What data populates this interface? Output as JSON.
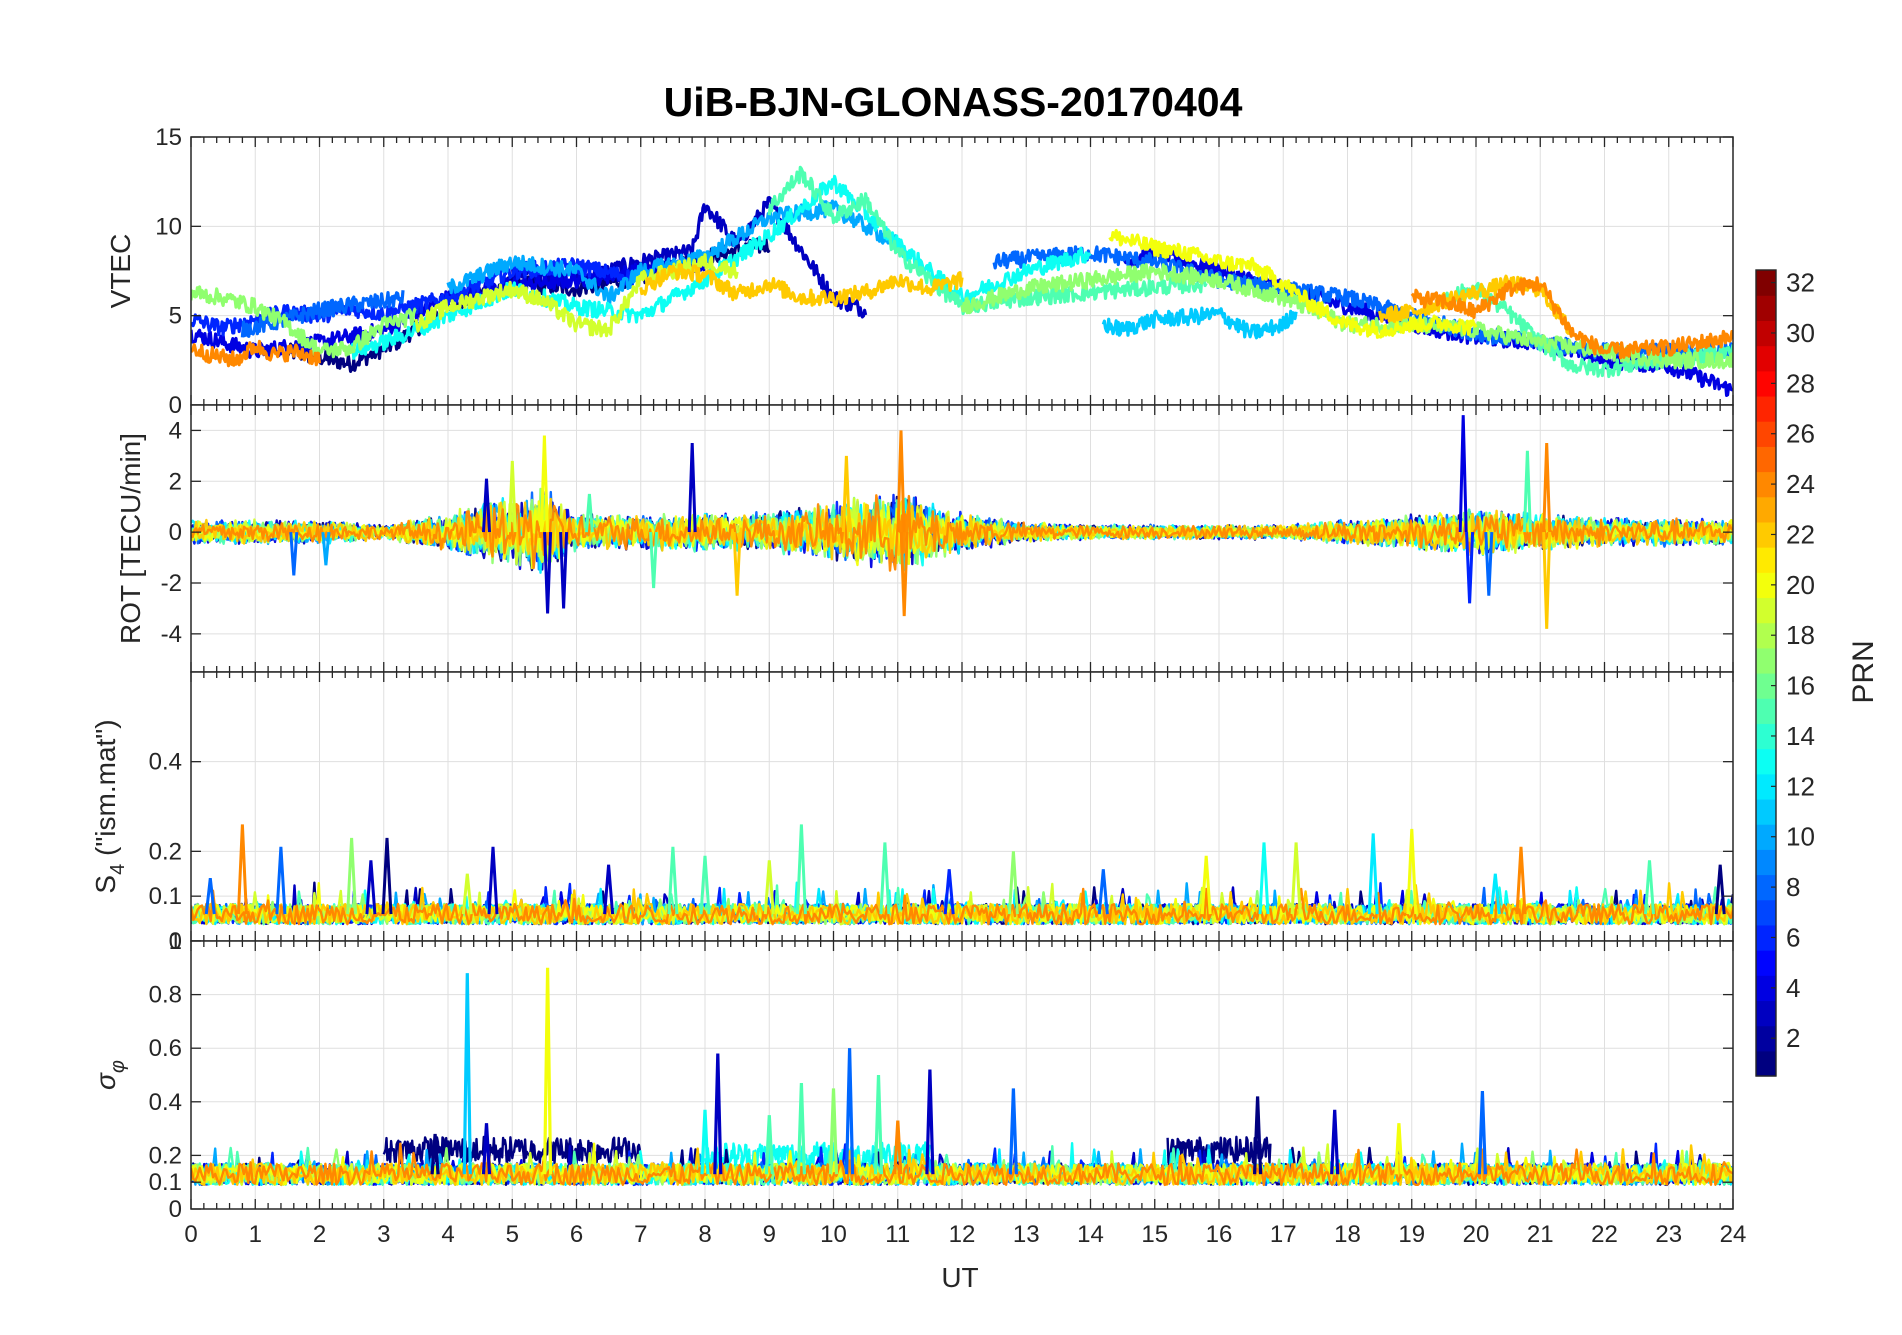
{
  "chart_data": {
    "type": "line",
    "title": "UiB-BJN-GLONASS-20170404",
    "xlabel": "UT",
    "xlim": [
      0,
      24
    ],
    "x_ticks": [
      "0",
      "1",
      "2",
      "3",
      "4",
      "5",
      "6",
      "7",
      "8",
      "9",
      "10",
      "11",
      "12",
      "13",
      "14",
      "15",
      "16",
      "17",
      "18",
      "19",
      "20",
      "21",
      "22",
      "23",
      "24"
    ],
    "grid": true,
    "panels": [
      {
        "name": "vtec",
        "ylabel": "VTEC",
        "ylim": [
          0,
          15
        ],
        "y_ticks": [
          {
            "v": 0,
            "label": "0"
          },
          {
            "v": 5,
            "label": "5"
          },
          {
            "v": 10,
            "label": "10"
          },
          {
            "v": 15,
            "label": "15"
          }
        ]
      },
      {
        "name": "rot",
        "ylabel": "ROT [TECU/min]",
        "ylim": [
          -5.5,
          5
        ],
        "y_ticks": [
          {
            "v": -4,
            "label": "-4"
          },
          {
            "v": -2,
            "label": "-2"
          },
          {
            "v": 0,
            "label": "0"
          },
          {
            "v": 2,
            "label": "2"
          },
          {
            "v": 4,
            "label": "4"
          }
        ]
      },
      {
        "name": "s4",
        "ylabel_main": "S",
        "ylabel_sub": "4",
        "ylabel_rest": " (\"ism.mat\")",
        "ylim": [
          0,
          0.6
        ],
        "y_ticks": [
          {
            "v": 0,
            "label": "0"
          },
          {
            "v": 0.1,
            "label": "0.1"
          },
          {
            "v": 0.2,
            "label": "0.2"
          },
          {
            "v": 0.4,
            "label": "0.4"
          }
        ]
      },
      {
        "name": "sigma",
        "ylabel_main": "σ",
        "ylabel_sub": "φ",
        "ylim": [
          0,
          1
        ],
        "y_ticks": [
          {
            "v": 0,
            "label": "0"
          },
          {
            "v": 0.1,
            "label": "0.1"
          },
          {
            "v": 0.2,
            "label": "0.2"
          },
          {
            "v": 0.4,
            "label": "0.4"
          },
          {
            "v": 0.6,
            "label": "0.6"
          },
          {
            "v": 0.8,
            "label": "0.8"
          },
          {
            "v": 1,
            "label": "1"
          }
        ]
      }
    ],
    "colorbar": {
      "label": "PRN",
      "range": [
        1,
        32
      ],
      "colormap": "jet",
      "ticks": [
        "2",
        "4",
        "6",
        "8",
        "10",
        "12",
        "14",
        "16",
        "18",
        "20",
        "22",
        "24",
        "26",
        "28",
        "30",
        "32"
      ],
      "placement": "right"
    },
    "series_prn": [
      1,
      3,
      4,
      6,
      8,
      10,
      12,
      13,
      15,
      17,
      19,
      20,
      22,
      24
    ],
    "vtec_series": [
      {
        "prn": 1,
        "x": [
          1.5,
          2.5,
          3.2,
          4.0,
          5.0,
          6.0,
          7.0,
          8.0,
          9.0
        ],
        "y": [
          3.0,
          2.3,
          3.5,
          5.5,
          6.8,
          6.5,
          7.2,
          8.3,
          9.0
        ]
      },
      {
        "prn": 3,
        "x": [
          5.0,
          6.0,
          7.0,
          7.8,
          8.0,
          8.5,
          9.0,
          10.0,
          10.5
        ],
        "y": [
          7.5,
          7.0,
          8.0,
          8.6,
          11.2,
          9.0,
          11.3,
          6.0,
          5.3
        ]
      },
      {
        "prn": 4,
        "x": [
          0.0,
          1.0,
          2.0,
          3.0,
          4.0,
          5.0,
          6.0,
          7.0,
          8.0
        ],
        "y": [
          4.0,
          3.0,
          3.5,
          4.2,
          6.0,
          6.7,
          7.0,
          7.5,
          8.0
        ]
      },
      {
        "prn": 4,
        "x": [
          14.5,
          15.0,
          16.0,
          17.0,
          18.0,
          19.0,
          20.0,
          21.0,
          22.0,
          23.0,
          24.0
        ],
        "y": [
          8.0,
          8.5,
          7.5,
          6.5,
          5.5,
          4.5,
          3.8,
          3.5,
          2.5,
          2.2,
          0.8
        ]
      },
      {
        "prn": 6,
        "x": [
          0.0,
          0.5,
          1.0,
          1.5,
          2.0,
          2.5,
          3.0,
          4.0,
          5.0,
          6.0,
          7.0
        ],
        "y": [
          4.8,
          4.3,
          4.8,
          5.2,
          5.0,
          5.4,
          5.1,
          6.0,
          7.5,
          7.8,
          7.0
        ]
      },
      {
        "prn": 8,
        "x": [
          0.8,
          1.5,
          2.0,
          2.5,
          3.0,
          3.3
        ],
        "y": [
          4.2,
          4.8,
          5.3,
          5.6,
          5.8,
          6.0
        ]
      },
      {
        "prn": 8,
        "x": [
          12.5,
          13.0,
          14.0,
          15.0,
          16.0,
          17.0,
          18.0,
          19.0,
          20.0,
          21.0,
          22.0,
          23.0,
          24.0
        ],
        "y": [
          8.0,
          8.2,
          8.5,
          8.0,
          7.0,
          6.5,
          6.0,
          5.0,
          4.0,
          3.5,
          3.0,
          3.0,
          3.0
        ]
      },
      {
        "prn": 10,
        "x": [
          4.0,
          5.0,
          6.0,
          6.5,
          7.0,
          8.0,
          9.0,
          10.0,
          11.0
        ],
        "y": [
          6.5,
          8.0,
          7.5,
          6.0,
          7.5,
          8.3,
          10.5,
          11.0,
          9.0
        ]
      },
      {
        "prn": 11,
        "x": [
          14.2,
          14.5,
          15.0,
          15.5,
          16.0,
          16.5,
          17.0,
          17.2
        ],
        "y": [
          4.5,
          4.2,
          4.8,
          4.9,
          5.1,
          4.0,
          4.5,
          5.3
        ]
      },
      {
        "prn": 13,
        "x": [
          2.5,
          3.0,
          3.5,
          4.0,
          5.0,
          6.0,
          7.0,
          8.0,
          9.0,
          10.0,
          11.0,
          12.0,
          13.0,
          14.0
        ],
        "y": [
          3.0,
          3.5,
          4.2,
          5.0,
          6.5,
          5.5,
          5.0,
          7.0,
          9.5,
          12.5,
          9.0,
          6.0,
          7.5,
          8.5
        ]
      },
      {
        "prn": 15,
        "x": [
          9.0,
          9.5,
          10.0,
          10.5,
          11.0,
          11.5,
          12.0,
          13.0,
          14.0,
          15.0,
          15.8
        ],
        "y": [
          11.0,
          13.0,
          10.5,
          11.5,
          8.5,
          7.0,
          5.5,
          6.0,
          6.3,
          6.6,
          6.8
        ]
      },
      {
        "prn": 15,
        "x": [
          19.5,
          20.0,
          20.5,
          21.0,
          21.5,
          22.0,
          22.5,
          23.0,
          24.0
        ],
        "y": [
          6.0,
          6.5,
          5.2,
          3.5,
          2.2,
          2.0,
          2.3,
          2.5,
          3.0
        ]
      },
      {
        "prn": 17,
        "x": [
          0.0,
          0.5,
          1.0,
          1.5,
          2.0,
          2.5,
          3.0,
          3.5
        ],
        "y": [
          6.3,
          6.0,
          5.5,
          4.5,
          3.0,
          3.2,
          4.5,
          5.0
        ]
      },
      {
        "prn": 17,
        "x": [
          12.0,
          13.0,
          14.0,
          15.0,
          16.0,
          17.0,
          18.0,
          19.0,
          20.0,
          21.0,
          22.0,
          23.0,
          24.0
        ],
        "y": [
          5.5,
          6.5,
          7.0,
          7.5,
          7.0,
          6.0,
          4.5,
          4.5,
          4.2,
          3.5,
          3.0,
          2.5,
          2.5
        ]
      },
      {
        "prn": 19,
        "x": [
          3.5,
          4.0,
          5.0,
          5.5,
          6.0,
          6.5,
          7.0,
          8.0,
          8.5
        ],
        "y": [
          4.5,
          5.5,
          6.5,
          5.8,
          4.5,
          4.2,
          7.0,
          8.0,
          7.5
        ]
      },
      {
        "prn": 20,
        "x": [
          14.3,
          15.0,
          15.5,
          16.0,
          16.5,
          17.0,
          17.5,
          18.0,
          18.5,
          19.0,
          19.5,
          20.0
        ],
        "y": [
          9.5,
          8.8,
          8.5,
          8.0,
          7.8,
          6.8,
          5.5,
          4.5,
          4.2,
          4.5,
          4.6,
          4.3
        ]
      },
      {
        "prn": 22,
        "x": [
          7.0,
          7.5,
          8.0,
          8.5,
          9.0,
          9.5,
          10.0,
          10.5,
          11.0,
          11.5,
          12.0
        ],
        "y": [
          6.5,
          7.5,
          7.3,
          6.2,
          6.8,
          6.0,
          6.0,
          6.3,
          7.0,
          6.5,
          7.0
        ]
      },
      {
        "prn": 22,
        "x": [
          18.5,
          19.0,
          19.5,
          20.0,
          20.5,
          21.0,
          21.5
        ],
        "y": [
          5.0,
          5.2,
          5.8,
          6.3,
          6.8,
          6.5,
          4.0
        ]
      },
      {
        "prn": 24,
        "x": [
          0.0,
          0.3,
          0.7,
          1.0,
          1.3,
          1.6,
          2.0
        ],
        "y": [
          3.2,
          2.8,
          2.5,
          3.3,
          2.8,
          3.0,
          2.6
        ]
      },
      {
        "prn": 24,
        "x": [
          19.0,
          19.5,
          20.0,
          20.5,
          21.0,
          21.5,
          22.0,
          23.0,
          24.0
        ],
        "y": [
          6.0,
          5.8,
          5.2,
          6.5,
          6.8,
          4.0,
          3.0,
          3.2,
          3.8
        ]
      }
    ],
    "rot_envelope": {
      "description": "approx. amplitude envelope of ROT fluctuations (TECU/min)",
      "x": [
        0,
        2,
        3,
        4,
        5,
        5.5,
        6,
        7,
        8,
        9,
        10,
        11,
        12,
        13,
        14,
        15,
        16,
        17,
        18,
        19,
        20,
        21,
        22,
        23,
        24
      ],
      "amp": [
        0.5,
        0.5,
        0.3,
        0.8,
        1.5,
        1.8,
        0.8,
        0.7,
        0.8,
        0.8,
        1.2,
        1.8,
        0.8,
        0.4,
        0.3,
        0.3,
        0.3,
        0.3,
        0.5,
        0.7,
        1.0,
        0.8,
        0.6,
        0.6,
        0.5
      ]
    },
    "rot_spikes": [
      {
        "x": 4.6,
        "y": 2.1,
        "prn": 3
      },
      {
        "x": 5.0,
        "y": 2.8,
        "prn": 19
      },
      {
        "x": 5.5,
        "y": 3.8,
        "prn": 20
      },
      {
        "x": 5.55,
        "y": -3.2,
        "prn": 3
      },
      {
        "x": 5.8,
        "y": -3.0,
        "prn": 3
      },
      {
        "x": 7.8,
        "y": 3.5,
        "prn": 3
      },
      {
        "x": 6.2,
        "y": 1.5,
        "prn": 15
      },
      {
        "x": 10.2,
        "y": 3.0,
        "prn": 22
      },
      {
        "x": 11.05,
        "y": 4.0,
        "prn": 24
      },
      {
        "x": 11.1,
        "y": -3.3,
        "prn": 24
      },
      {
        "x": 8.5,
        "y": -2.5,
        "prn": 22
      },
      {
        "x": 19.8,
        "y": 4.6,
        "prn": 4
      },
      {
        "x": 19.9,
        "y": -2.8,
        "prn": 6
      },
      {
        "x": 21.1,
        "y": 3.5,
        "prn": 24
      },
      {
        "x": 21.1,
        "y": -3.8,
        "prn": 22
      },
      {
        "x": 20.8,
        "y": 3.2,
        "prn": 15
      },
      {
        "x": 1.6,
        "y": -1.7,
        "prn": 8
      },
      {
        "x": 2.1,
        "y": -1.3,
        "prn": 10
      },
      {
        "x": 20.2,
        "y": -2.5,
        "prn": 8
      },
      {
        "x": 7.2,
        "y": -2.2,
        "prn": 15
      }
    ],
    "s4_baseline": {
      "x": [
        0,
        24
      ],
      "y": 0.06
    },
    "s4_spikes": [
      {
        "x": 0.3,
        "y": 0.14,
        "prn": 8
      },
      {
        "x": 0.8,
        "y": 0.26,
        "prn": 24
      },
      {
        "x": 1.4,
        "y": 0.21,
        "prn": 8
      },
      {
        "x": 2.5,
        "y": 0.23,
        "prn": 17
      },
      {
        "x": 2.8,
        "y": 0.18,
        "prn": 3
      },
      {
        "x": 3.05,
        "y": 0.23,
        "prn": 1
      },
      {
        "x": 4.7,
        "y": 0.21,
        "prn": 3
      },
      {
        "x": 4.3,
        "y": 0.15,
        "prn": 19
      },
      {
        "x": 6.5,
        "y": 0.17,
        "prn": 3
      },
      {
        "x": 7.5,
        "y": 0.21,
        "prn": 15
      },
      {
        "x": 8.0,
        "y": 0.19,
        "prn": 15
      },
      {
        "x": 9.5,
        "y": 0.26,
        "prn": 15
      },
      {
        "x": 9.0,
        "y": 0.18,
        "prn": 19
      },
      {
        "x": 10.8,
        "y": 0.22,
        "prn": 15
      },
      {
        "x": 12.8,
        "y": 0.2,
        "prn": 17
      },
      {
        "x": 14.2,
        "y": 0.16,
        "prn": 8
      },
      {
        "x": 15.8,
        "y": 0.19,
        "prn": 20
      },
      {
        "x": 16.7,
        "y": 0.22,
        "prn": 13
      },
      {
        "x": 17.2,
        "y": 0.22,
        "prn": 19
      },
      {
        "x": 18.4,
        "y": 0.24,
        "prn": 12
      },
      {
        "x": 19.0,
        "y": 0.25,
        "prn": 20
      },
      {
        "x": 20.3,
        "y": 0.15,
        "prn": 12
      },
      {
        "x": 20.7,
        "y": 0.21,
        "prn": 24
      },
      {
        "x": 22.7,
        "y": 0.18,
        "prn": 15
      },
      {
        "x": 23.8,
        "y": 0.17,
        "prn": 1
      },
      {
        "x": 11.8,
        "y": 0.16,
        "prn": 6
      }
    ],
    "sigma_baseline": {
      "x": [
        0,
        24
      ],
      "y": 0.13
    },
    "sigma_spikes": [
      {
        "x": 4.3,
        "y": 0.88,
        "prn": 11
      },
      {
        "x": 5.55,
        "y": 0.9,
        "prn": 20
      },
      {
        "x": 8.2,
        "y": 0.58,
        "prn": 3
      },
      {
        "x": 10.25,
        "y": 0.6,
        "prn": 8
      },
      {
        "x": 10.7,
        "y": 0.5,
        "prn": 15
      },
      {
        "x": 9.5,
        "y": 0.47,
        "prn": 15
      },
      {
        "x": 11.5,
        "y": 0.52,
        "prn": 3
      },
      {
        "x": 12.8,
        "y": 0.45,
        "prn": 8
      },
      {
        "x": 8.0,
        "y": 0.37,
        "prn": 13
      },
      {
        "x": 16.6,
        "y": 0.42,
        "prn": 1
      },
      {
        "x": 17.8,
        "y": 0.37,
        "prn": 3
      },
      {
        "x": 18.8,
        "y": 0.32,
        "prn": 20
      },
      {
        "x": 20.1,
        "y": 0.44,
        "prn": 8
      },
      {
        "x": 10.0,
        "y": 0.45,
        "prn": 17
      },
      {
        "x": 9.0,
        "y": 0.35,
        "prn": 15
      },
      {
        "x": 4.6,
        "y": 0.32,
        "prn": 3
      },
      {
        "x": 3.8,
        "y": 0.28,
        "prn": 1
      },
      {
        "x": 11.0,
        "y": 0.33,
        "prn": 24
      }
    ],
    "sigma_raised": [
      {
        "x": [
          3.0,
          7.0
        ],
        "y": 0.22,
        "prn": 1
      },
      {
        "x": [
          15.2,
          16.8
        ],
        "y": 0.22,
        "prn": 1
      },
      {
        "x": [
          8.0,
          11.5
        ],
        "y": 0.2,
        "prn": 13
      }
    ]
  }
}
